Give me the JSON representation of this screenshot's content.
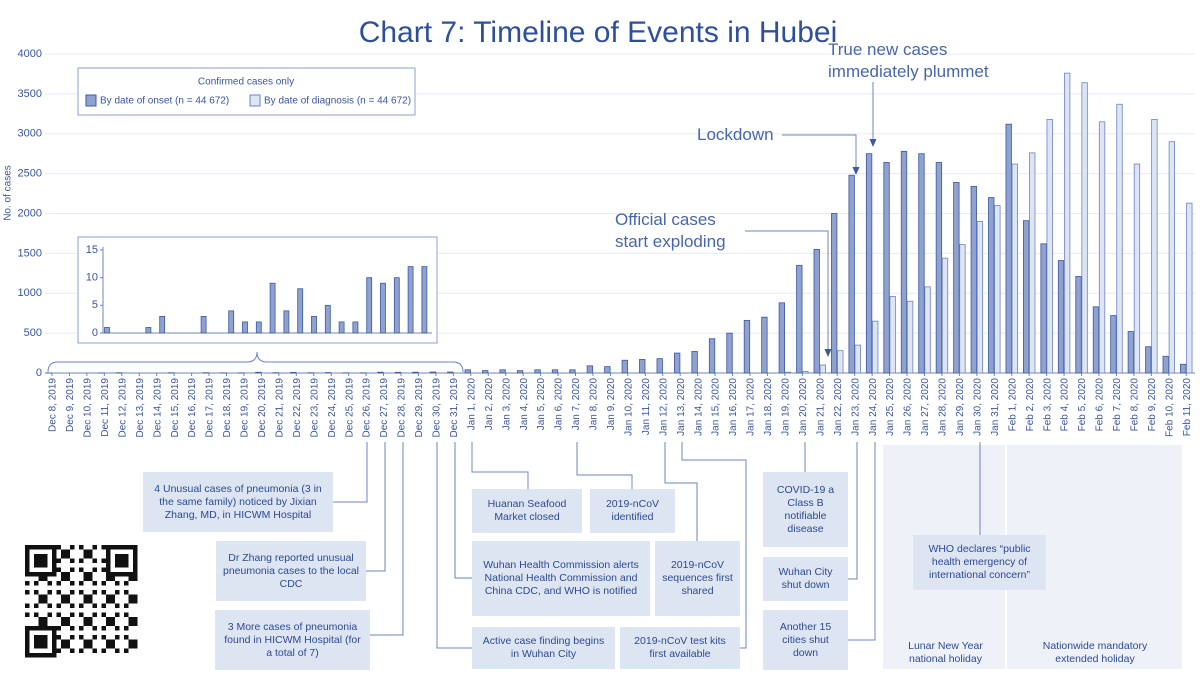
{
  "chart_data": {
    "type": "bar",
    "title": "Chart 7: Timeline of Events in Hubei",
    "y_label": "No. of cases",
    "legend_title": "Confirmed cases only",
    "categories": [
      "Dec 8, 2019",
      "Dec 9, 2019",
      "Dec 10, 2019",
      "Dec 11, 2019",
      "Dec 12, 2019",
      "Dec 13, 2019",
      "Dec 14, 2019",
      "Dec 15, 2019",
      "Dec 16, 2019",
      "Dec 17, 2019",
      "Dec 18, 2019",
      "Dec 19, 2019",
      "Dec 20, 2019",
      "Dec 21, 2019",
      "Dec 22, 2019",
      "Dec 23, 2019",
      "Dec 24, 2019",
      "Dec 25, 2019",
      "Dec 26, 2019",
      "Dec 27, 2019",
      "Dec 28, 2019",
      "Dec 29, 2019",
      "Dec 30, 2019",
      "Dec 31, 2019",
      "Jan 1, 2020",
      "Jan 2, 2020",
      "Jan 3, 2020",
      "Jan 4, 2020",
      "Jan 5, 2020",
      "Jan 6, 2020",
      "Jan 7, 2020",
      "Jan 8, 2020",
      "Jan 9, 2020",
      "Jan 10, 2020",
      "Jan 11, 2020",
      "Jan 12, 2020",
      "Jan 13, 2020",
      "Jan 14, 2020",
      "Jan 15, 2020",
      "Jan 16, 2020",
      "Jan 17, 2020",
      "Jan 18, 2020",
      "Jan 19, 2020",
      "Jan 20, 2020",
      "Jan 21, 2020",
      "Jan 22, 2020",
      "Jan 23, 2020",
      "Jan 24, 2020",
      "Jan 25, 2020",
      "Jan 26, 2020",
      "Jan 27, 2020",
      "Jan 28, 2020",
      "Jan 29, 2020",
      "Jan 30, 2020",
      "Jan 31, 2020",
      "Feb 1, 2020",
      "Feb 2, 2020",
      "Feb 3, 2020",
      "Feb 4, 2020",
      "Feb 5, 2020",
      "Feb 6, 2020",
      "Feb 7, 2020",
      "Feb 8, 2020",
      "Feb 9, 2020",
      "Feb 10, 2020",
      "Feb 11, 2020"
    ],
    "series": [
      {
        "name": "By date of onset (n = 44 672)",
        "color": "#8ea1cf",
        "stroke": "#3b5aa3",
        "values": [
          1,
          0,
          0,
          1,
          3,
          0,
          0,
          3,
          0,
          4,
          2,
          2,
          9,
          4,
          8,
          3,
          5,
          2,
          2,
          10,
          9,
          10,
          12,
          12,
          40,
          30,
          40,
          30,
          40,
          40,
          40,
          90,
          80,
          160,
          170,
          180,
          250,
          270,
          430,
          500,
          660,
          700,
          880,
          1350,
          1550,
          2000,
          2480,
          2750,
          2640,
          2780,
          2750,
          2640,
          2390,
          2340,
          2200,
          3120,
          1910,
          1620,
          1410,
          1210,
          830,
          720,
          520,
          330,
          210,
          110
        ]
      },
      {
        "name": "By date of diagnosis (n = 44 672)",
        "color": "#dde4f3",
        "stroke": "#6d84c2",
        "values": [
          0,
          0,
          0,
          0,
          0,
          0,
          0,
          0,
          0,
          0,
          0,
          0,
          0,
          0,
          0,
          0,
          0,
          0,
          0,
          0,
          0,
          0,
          0,
          0,
          0,
          0,
          0,
          0,
          0,
          0,
          0,
          0,
          0,
          0,
          0,
          0,
          0,
          0,
          0,
          0,
          0,
          0,
          10,
          20,
          100,
          280,
          350,
          650,
          960,
          900,
          1080,
          1440,
          1610,
          1900,
          2100,
          2620,
          2760,
          3180,
          3760,
          3640,
          3150,
          3370,
          2620,
          3180,
          2900,
          2130
        ]
      }
    ],
    "ylim": [
      0,
      4000
    ],
    "yticks": [
      0,
      500,
      1000,
      1500,
      2000,
      2500,
      3000,
      3500,
      4000
    ],
    "grid": true,
    "inset": {
      "ylim": [
        0,
        15
      ],
      "yticks": [
        0,
        5,
        10,
        15
      ]
    },
    "callouts": [
      "Official cases start exploding",
      "Lockdown",
      "True new cases immediately plummet"
    ],
    "notes": [
      "4 Unusual cases of pneumonia (3 in the same family) noticed by Jixian Zhang, MD, in HICWM Hospital",
      "Dr Zhang reported unusual pneumonia cases to the local CDC",
      "3 More cases of pneumonia found in HICWM Hospital (for a total of 7)",
      "Active case finding begins in Wuhan City",
      "Wuhan Health Commission alerts National Health Commission and China CDC, and WHO is notified",
      "Huanan Seafood Market closed",
      "2019-nCoV identified",
      "2019-nCoV sequences first shared",
      "2019-nCoV test kits first available",
      "COVID-19 a Class B notifiable disease",
      "Wuhan City shut down",
      "Another 15 cities shut down",
      "WHO declares “public health emergency of international concern”"
    ],
    "holidays": [
      "Lunar New Year national holiday",
      "Nationwide mandatory extended holiday"
    ]
  }
}
